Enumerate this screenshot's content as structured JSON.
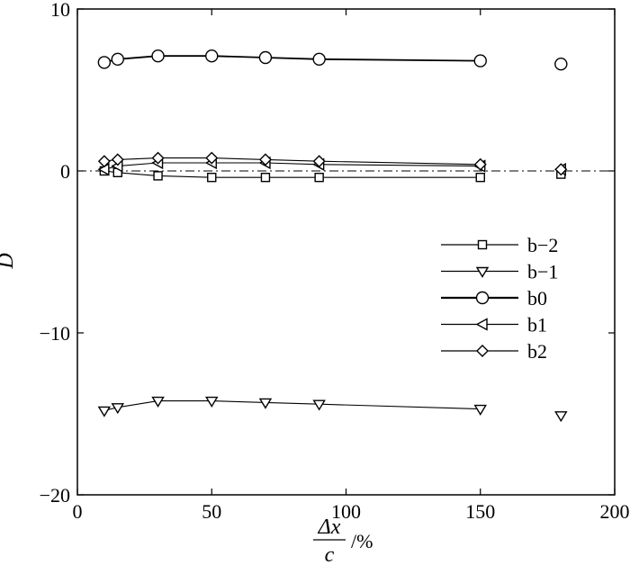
{
  "chart_data": {
    "type": "line",
    "title": "",
    "xlabel": {
      "numerator": "Δx",
      "denominator": "c",
      "unit": "/%"
    },
    "ylabel": "D",
    "xlim": [
      0,
      200
    ],
    "ylim": [
      -20,
      10
    ],
    "xticks": [
      "0",
      "50",
      "100",
      "150",
      "200"
    ],
    "yticks": [
      "10",
      "0",
      "−10",
      "−20"
    ],
    "grid": false,
    "reference_line": {
      "y": 0,
      "style": "dash-dot"
    },
    "legend_position": "right",
    "x": [
      10,
      15,
      30,
      50,
      70,
      90,
      150,
      180
    ],
    "series": [
      {
        "name": "b−2",
        "marker": "square",
        "values": [
          0.0,
          -0.1,
          -0.3,
          -0.4,
          -0.4,
          -0.4,
          -0.4,
          -0.2
        ]
      },
      {
        "name": "b−1",
        "marker": "triangle-down",
        "values": [
          -14.8,
          -14.6,
          -14.2,
          -14.2,
          -14.3,
          -14.4,
          -14.7,
          -15.1
        ]
      },
      {
        "name": "b0",
        "marker": "circle",
        "values": [
          6.7,
          6.9,
          7.1,
          7.1,
          7.0,
          6.9,
          6.8,
          6.6
        ]
      },
      {
        "name": "b1",
        "marker": "triangle-left",
        "values": [
          0.1,
          0.3,
          0.5,
          0.5,
          0.5,
          0.4,
          0.3,
          0.1
        ]
      },
      {
        "name": "b2",
        "marker": "diamond",
        "values": [
          0.6,
          0.7,
          0.8,
          0.8,
          0.7,
          0.6,
          0.4,
          0.1
        ]
      }
    ]
  }
}
